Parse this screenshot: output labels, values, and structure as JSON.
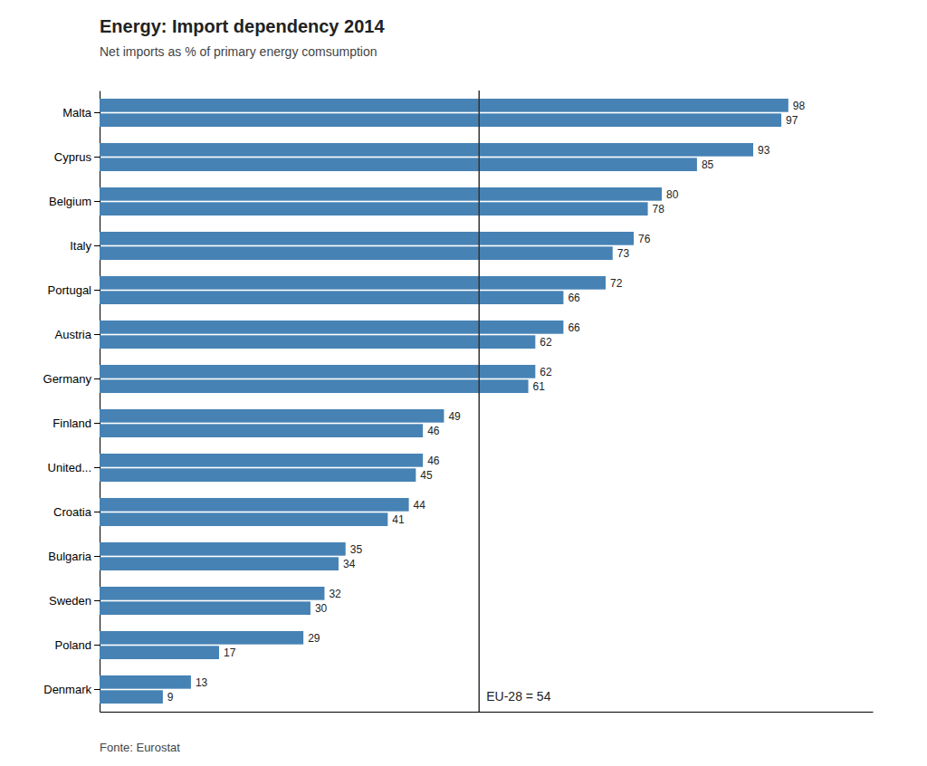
{
  "chart_data": {
    "type": "bar",
    "orientation": "horizontal",
    "title": "Energy: Import dependency 2014",
    "subtitle": "Net imports as % of primary energy comsumption",
    "categories": [
      "Malta",
      "Cyprus",
      "Belgium",
      "Italy",
      "Portugal",
      "Austria",
      "Germany",
      "Finland",
      "United...",
      "Croatia",
      "Bulgaria",
      "Sweden",
      "Poland",
      "Denmark"
    ],
    "series": [
      {
        "values": [
          98,
          93,
          80,
          76,
          72,
          66,
          62,
          49,
          46,
          44,
          35,
          32,
          29,
          13
        ]
      },
      {
        "values": [
          97,
          85,
          78,
          73,
          66,
          62,
          61,
          46,
          45,
          41,
          34,
          30,
          17,
          9
        ]
      }
    ],
    "color": "#4682b4",
    "xlim": [
      0,
      110
    ],
    "grid": false,
    "data_labels": true,
    "tick_labels": "y",
    "annotations": [
      {
        "x": 54,
        "text": "EU-28 = 54"
      },
      {
        "text": "Fonte: Eurostat"
      }
    ]
  }
}
